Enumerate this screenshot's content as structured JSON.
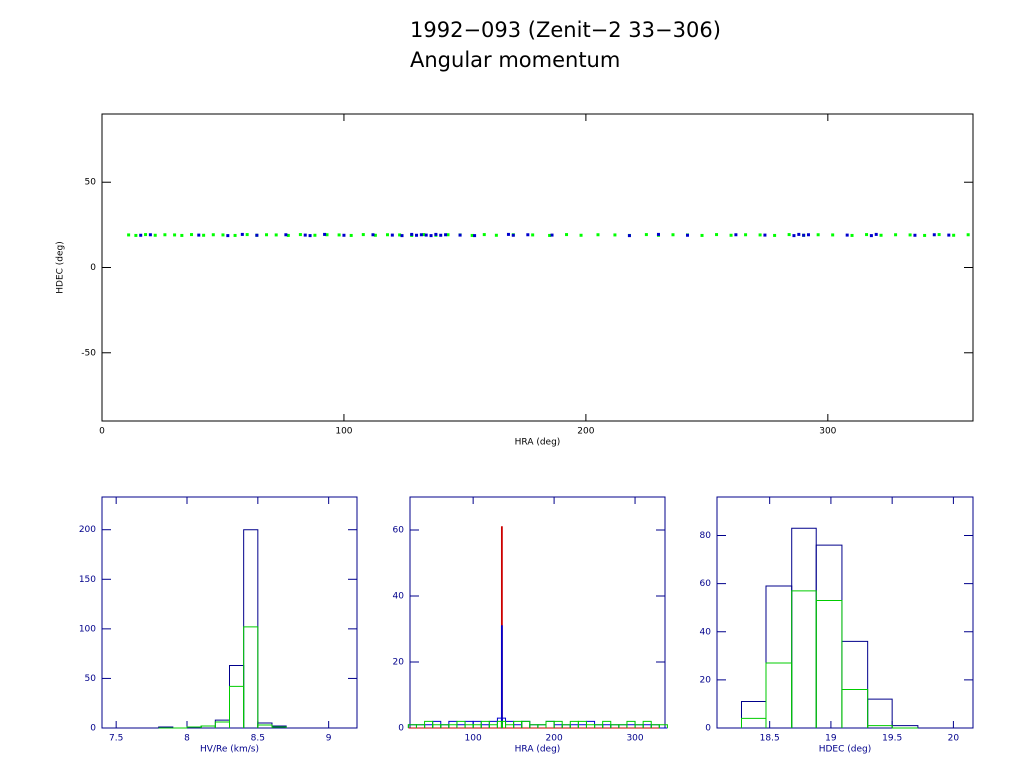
{
  "chart_data": [
    {
      "type": "scatter",
      "title": "1992−093 (Zenit−2 33−306)",
      "subtitle": "Angular momentum",
      "x_label": "HRA (deg)",
      "y_label": "HDEC (deg)",
      "axis_color": "#000000",
      "xlim": [
        0,
        360
      ],
      "ylim": [
        -90,
        90
      ],
      "xticks": [
        0,
        100,
        200,
        300
      ],
      "yticks": [
        -50,
        0,
        50
      ],
      "series": [
        {
          "color": "#00ff00",
          "x": [
            11,
            14,
            18,
            22,
            26,
            30,
            33,
            37,
            42,
            46,
            50,
            55,
            60,
            64,
            68,
            72,
            77,
            82,
            88,
            93,
            98,
            103,
            108,
            113,
            118,
            123,
            128,
            133,
            138,
            143,
            148,
            153,
            158,
            163,
            170,
            178,
            185,
            192,
            198,
            205,
            212,
            218,
            225,
            230,
            236,
            242,
            248,
            254,
            260,
            266,
            272,
            278,
            284,
            290,
            296,
            302,
            310,
            316,
            322,
            328,
            334,
            340,
            346,
            352,
            358
          ],
          "values": [
            19.1,
            18.8,
            19.3,
            18.9,
            19.2,
            19.1,
            18.8,
            19.3,
            18.9,
            19.2,
            19.1,
            18.8,
            19.3,
            18.9,
            19.2,
            19.1,
            18.8,
            19.3,
            18.9,
            19.2,
            19.1,
            18.8,
            19.3,
            18.9,
            19.2,
            19.1,
            18.8,
            19.3,
            18.9,
            19.2,
            19.1,
            18.8,
            19.3,
            18.9,
            19.2,
            19.1,
            18.8,
            19.3,
            18.9,
            19.2,
            19.1,
            18.8,
            19.3,
            18.9,
            19.2,
            19.1,
            18.8,
            19.3,
            18.9,
            19.2,
            19.1,
            18.8,
            19.3,
            18.9,
            19.2,
            19.1,
            18.8,
            19.3,
            18.9,
            19.2,
            19.1,
            18.8,
            19.3,
            18.9,
            19.2
          ]
        },
        {
          "color": "#0000cd",
          "x": [
            16,
            20,
            40,
            52,
            58,
            64,
            76,
            84,
            86,
            92,
            100,
            112,
            120,
            124,
            128,
            130,
            132,
            134,
            136,
            138,
            140,
            142,
            148,
            154,
            168,
            170,
            176,
            186,
            218,
            230,
            242,
            262,
            274,
            286,
            288,
            290,
            292,
            308,
            318,
            320,
            336,
            344,
            350
          ],
          "values": [
            18.9,
            19.2,
            19.0,
            18.7,
            19.4,
            18.9,
            19.2,
            19.0,
            18.7,
            19.4,
            18.9,
            19.2,
            19.0,
            18.7,
            19.4,
            18.9,
            19.2,
            19.0,
            18.7,
            19.4,
            18.9,
            19.2,
            19.0,
            18.7,
            19.4,
            18.9,
            19.2,
            19.0,
            18.7,
            19.4,
            18.9,
            19.2,
            19.0,
            18.7,
            19.4,
            18.9,
            19.2,
            19.0,
            18.7,
            19.4,
            18.9,
            19.2,
            19.0
          ]
        }
      ]
    },
    {
      "type": "histogram",
      "x_label": "HV/Re (km/s)",
      "axis_color": "#00008b",
      "xlim": [
        7.4,
        9.2
      ],
      "ylim": [
        0,
        233
      ],
      "xticks": [
        7.5,
        8,
        8.5,
        9
      ],
      "yticks": [
        0,
        50,
        100,
        150,
        200
      ],
      "bins": [
        7.8,
        7.9,
        8.0,
        8.1,
        8.2,
        8.3,
        8.4,
        8.5,
        8.6,
        8.7
      ],
      "series": [
        {
          "color": "#00008b",
          "values": [
            1,
            0,
            1,
            2,
            8,
            63,
            200,
            5,
            2
          ]
        },
        {
          "color": "#00cc00",
          "values": [
            0,
            0,
            1,
            2,
            6,
            42,
            102,
            3,
            1
          ]
        }
      ]
    },
    {
      "type": "histogram",
      "x_label": "HRA (deg)",
      "axis_color": "#00008b",
      "xlim": [
        22,
        337
      ],
      "ylim": [
        0,
        70
      ],
      "xticks": [
        100,
        200,
        300
      ],
      "yticks": [
        0,
        20,
        40,
        60
      ],
      "bins": [
        20,
        30,
        40,
        50,
        60,
        70,
        80,
        90,
        100,
        110,
        120,
        130,
        135,
        136,
        140,
        150,
        160,
        170,
        180,
        190,
        200,
        210,
        220,
        230,
        240,
        250,
        260,
        270,
        280,
        290,
        300,
        310,
        320,
        330,
        340
      ],
      "series": [
        {
          "color": "#cc0000",
          "values": [
            0,
            0,
            0,
            0,
            0,
            0,
            0,
            0,
            0,
            0,
            0,
            0,
            61,
            0,
            0,
            0,
            0,
            0,
            0,
            0,
            0,
            0,
            0,
            0,
            0,
            0,
            0,
            0,
            0,
            0,
            0,
            0,
            0,
            0
          ]
        },
        {
          "color": "#0000cd",
          "values": [
            1,
            1,
            1,
            2,
            1,
            2,
            1,
            2,
            2,
            1,
            2,
            3,
            31,
            3,
            2,
            1,
            2,
            1,
            1,
            2,
            1,
            1,
            1,
            1,
            2,
            1,
            1,
            1,
            1,
            1,
            1,
            1,
            1,
            0
          ]
        },
        {
          "color": "#00cc00",
          "values": [
            1,
            1,
            2,
            1,
            1,
            1,
            2,
            1,
            1,
            2,
            1,
            2,
            1,
            2,
            1,
            2,
            2,
            1,
            1,
            2,
            2,
            1,
            2,
            2,
            1,
            1,
            2,
            1,
            1,
            2,
            1,
            2,
            1,
            1
          ]
        }
      ]
    },
    {
      "type": "histogram",
      "x_label": "HDEC (deg)",
      "axis_color": "#00008b",
      "xlim": [
        18.07,
        20.16
      ],
      "ylim": [
        0,
        96
      ],
      "xticks": [
        18.5,
        19,
        19.5,
        20
      ],
      "yticks": [
        0,
        20,
        40,
        60,
        80
      ],
      "bins": [
        18.27,
        18.47,
        18.68,
        18.88,
        19.09,
        19.3,
        19.5,
        19.71
      ],
      "series": [
        {
          "color": "#00008b",
          "values": [
            11,
            59,
            83,
            76,
            36,
            12,
            1
          ]
        },
        {
          "color": "#00cc00",
          "values": [
            4,
            27,
            57,
            53,
            16,
            1,
            0
          ]
        }
      ]
    }
  ]
}
